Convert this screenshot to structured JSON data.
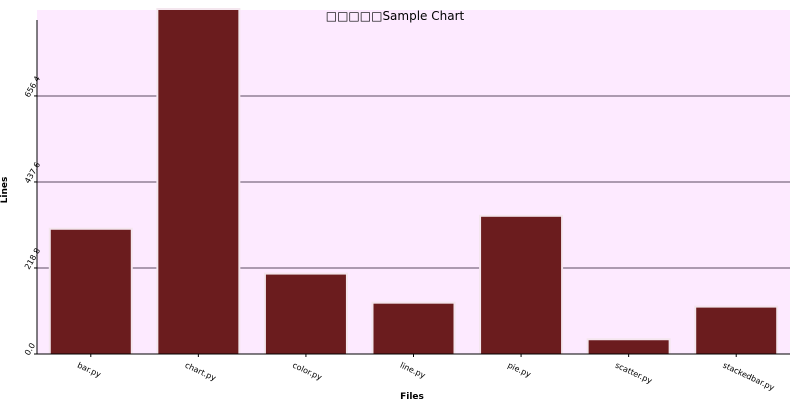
{
  "chart_data": {
    "type": "bar",
    "title": "□□□□□Sample Chart",
    "xlabel": "Files",
    "ylabel": "Lines",
    "categories": [
      "bar.py",
      "chart.py",
      "color.py",
      "line.py",
      "pie.py",
      "scatter.py",
      "stackedbar.py"
    ],
    "values": [
      316,
      875,
      202,
      128,
      349,
      35,
      118
    ],
    "ylim": [
      0,
      875
    ],
    "yticks": [
      0.0,
      218.8,
      437.6,
      656.4
    ],
    "ytick_labels": [
      "0.0",
      "218.8",
      "437.6",
      "656.4"
    ],
    "grid": true,
    "colors": {
      "bar": "#6b1c1e",
      "bar_outline": "#f4e6ee",
      "background": "#fdeaff",
      "gridline": "#5a4a60",
      "axis": "#000000"
    }
  }
}
